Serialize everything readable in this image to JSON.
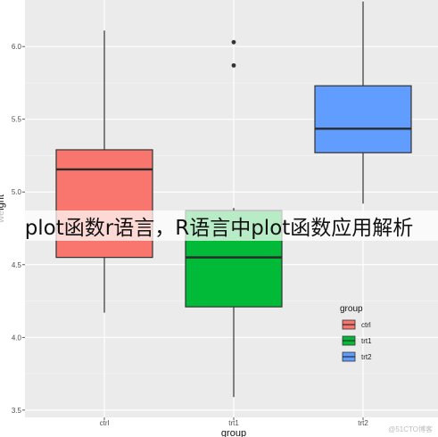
{
  "overlay_text": "plot函数r语言，R语言中plot函数应用解析",
  "watermark": "@51CTO博客",
  "chart_data": {
    "type": "boxplot",
    "xlabel": "group",
    "ylabel": "weight",
    "categories": [
      "ctrl",
      "trt1",
      "trt2"
    ],
    "ylim": [
      3.45,
      6.32
    ],
    "y_ticks": [
      "3.5",
      "4.0",
      "4.5",
      "5.0",
      "5.5",
      "6.0"
    ],
    "grid": true,
    "legend": {
      "title": "group",
      "placement": "right",
      "entries": [
        "ctrl",
        "trt1",
        "trt2"
      ]
    },
    "boxes": [
      {
        "group": "ctrl",
        "whisker_low": 4.17,
        "q1": 4.55,
        "median": 5.155,
        "q3": 5.29,
        "whisker_high": 6.11,
        "outliers": [],
        "color": "#F8766D"
      },
      {
        "group": "trt1",
        "whisker_low": 3.59,
        "q1": 4.21,
        "median": 4.55,
        "q3": 4.87,
        "whisker_high": 4.89,
        "outliers": [
          5.87,
          6.03
        ],
        "color": "#00BA38"
      },
      {
        "group": "trt2",
        "whisker_low": 4.92,
        "q1": 5.27,
        "median": 5.435,
        "q3": 5.73,
        "whisker_high": 6.31,
        "outliers": [],
        "color": "#619CFF"
      }
    ]
  }
}
